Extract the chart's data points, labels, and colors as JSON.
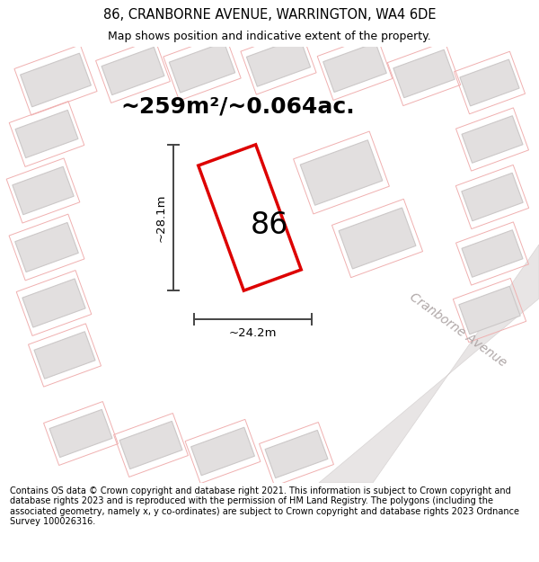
{
  "title": "86, CRANBORNE AVENUE, WARRINGTON, WA4 6DE",
  "subtitle": "Map shows position and indicative extent of the property.",
  "area_label": "~259m²/~0.064ac.",
  "number_label": "86",
  "dim_horizontal": "~24.2m",
  "dim_vertical": "~28.1m",
  "street_label": "Cranborne Avenue",
  "footer": "Contains OS data © Crown copyright and database right 2021. This information is subject to Crown copyright and database rights 2023 and is reproduced with the permission of HM Land Registry. The polygons (including the associated geometry, namely x, y co-ordinates) are subject to Crown copyright and database rights 2023 Ordnance Survey 100026316.",
  "map_bg": "#eeecec",
  "plot_fill": "#ffffff",
  "red_outline": "#dd0000",
  "building_fill": "#e2dfdf",
  "building_edge": "#ccc8c8",
  "pink_edge": "#f0b0b0",
  "street_fill": "#e8e5e5",
  "street_edge": "#d8d4d4",
  "dim_color": "#444444",
  "street_text_color": "#b0a8a8",
  "title_fontsize": 10.5,
  "subtitle_fontsize": 9,
  "area_fontsize": 18,
  "number_fontsize": 24,
  "dim_fontsize": 9.5,
  "street_fontsize": 10,
  "footer_fontsize": 7
}
